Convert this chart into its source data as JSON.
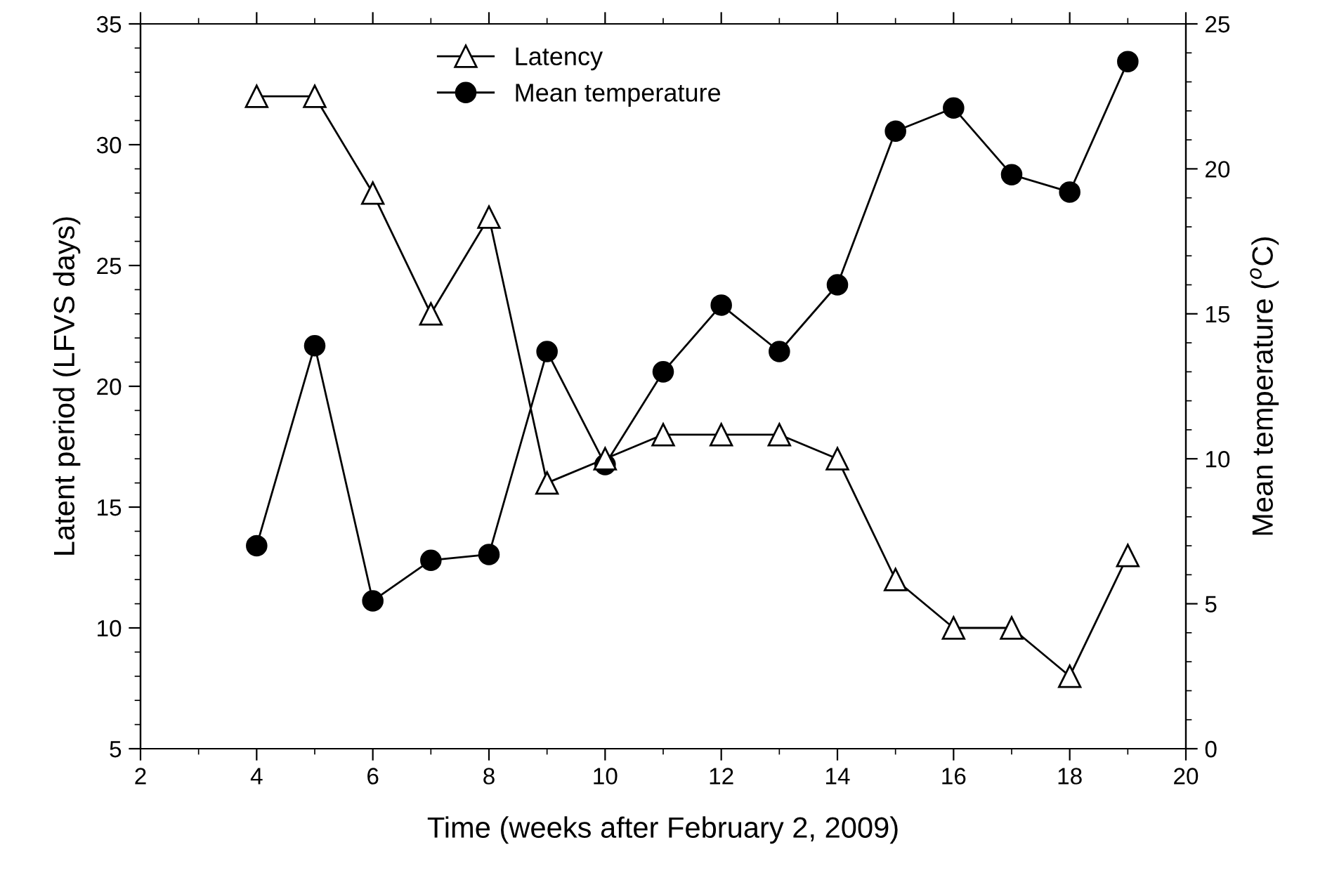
{
  "chart_data": {
    "type": "line",
    "xlabel": "Time (weeks after February 2, 2009)",
    "ylabel": "Latent period (LFVS days)",
    "y2label": "Mean temperature ($^{o}$C)",
    "x": [
      4,
      5,
      6,
      7,
      8,
      9,
      10,
      11,
      12,
      13,
      14,
      15,
      16,
      17,
      18,
      19
    ],
    "series": [
      {
        "name": "Latency",
        "color": "#000000",
        "marker": "triangle",
        "values": [
          32,
          32,
          28,
          23,
          27,
          16,
          17,
          18,
          18,
          18,
          17,
          12,
          10,
          10,
          8,
          13
        ]
      },
      {
        "name": "Mean temperature",
        "color": "#000000",
        "marker": "circle",
        "axis": "y2",
        "values": [
          7.0,
          13.9,
          5.1,
          6.5,
          6.7,
          13.7,
          9.8,
          13.0,
          15.3,
          13.7,
          16.0,
          21.3,
          22.1,
          19.8,
          19.2,
          23.7
        ]
      }
    ],
    "xlim": [
      2,
      20
    ],
    "xticks": [
      2,
      4,
      6,
      8,
      10,
      12,
      14,
      16,
      18,
      20
    ],
    "ylim": [
      5,
      35
    ],
    "yticks": [
      5,
      10,
      15,
      20,
      25,
      30,
      35
    ],
    "y2lim": [
      0,
      25
    ],
    "y2ticks": [
      0,
      5,
      10,
      15,
      20,
      25
    ],
    "legend": "top",
    "grid": false,
    "line_style": "solid"
  }
}
